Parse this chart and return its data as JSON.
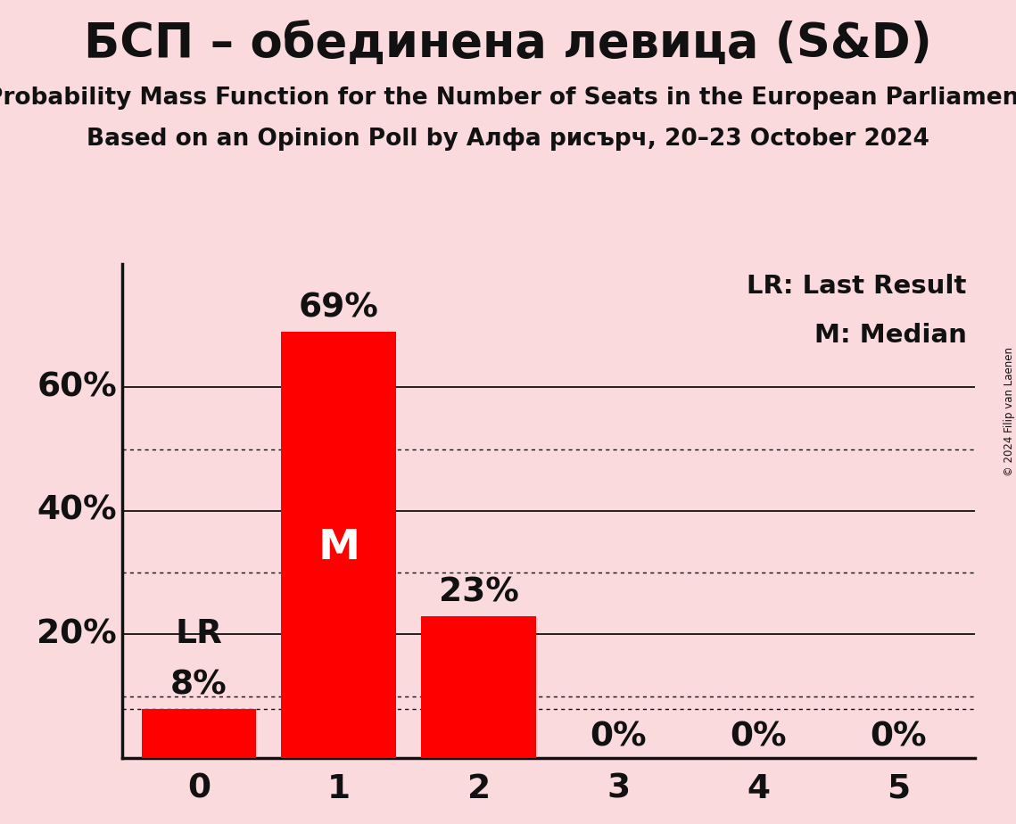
{
  "title": "БСП – обединена левица (S&D)",
  "subtitle1": "Probability Mass Function for the Number of Seats in the European Parliament",
  "subtitle2": "Based on an Opinion Poll by Алфа рисърч, 20–23 October 2024",
  "copyright": "© 2024 Filip van Laenen",
  "categories": [
    0,
    1,
    2,
    3,
    4,
    5
  ],
  "values": [
    0.08,
    0.69,
    0.23,
    0.0,
    0.0,
    0.0
  ],
  "bar_color": "#FF0000",
  "background_color": "#FADADD",
  "text_color": "#111111",
  "last_result": 0,
  "median": 1,
  "legend_lr": "LR: Last Result",
  "legend_m": "M: Median",
  "ylim": [
    0,
    0.8
  ],
  "solid_lines": [
    0.2,
    0.4,
    0.6
  ],
  "dotted_lines": [
    0.1,
    0.3,
    0.5,
    0.08
  ]
}
